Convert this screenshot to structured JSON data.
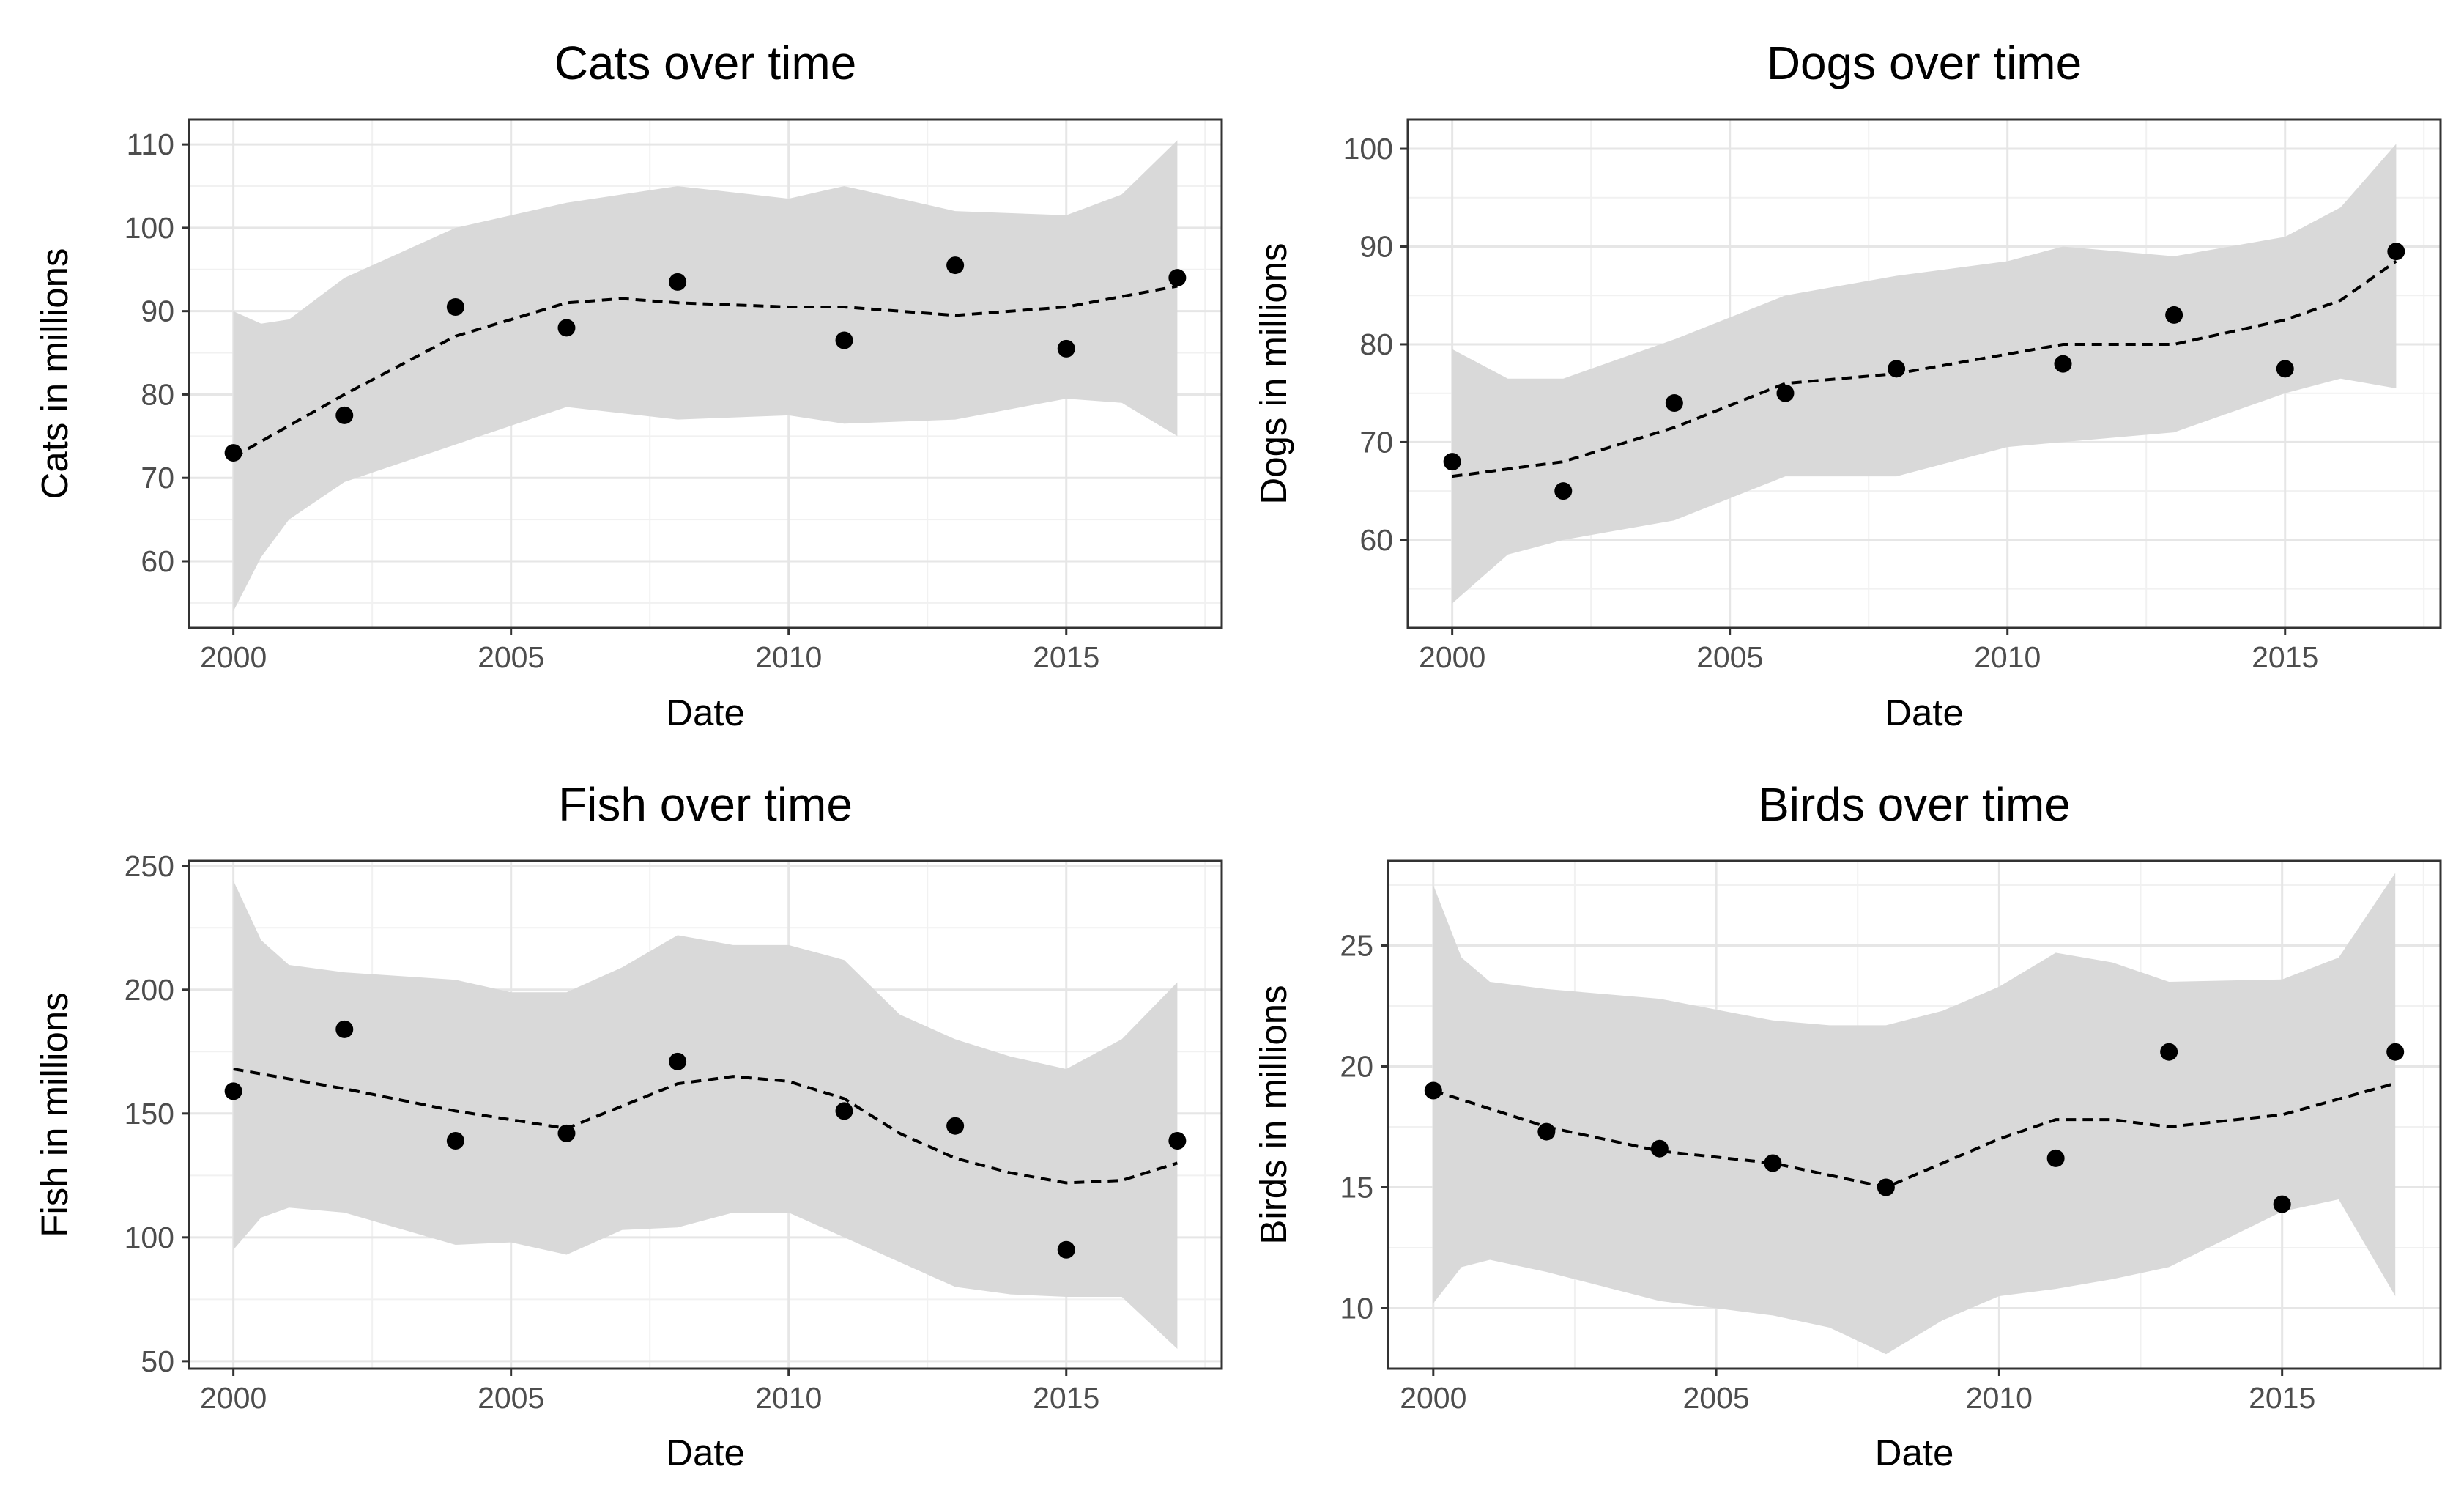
{
  "chart_data": [
    {
      "type": "scatter",
      "title": "Cats over time",
      "xlabel": "Date",
      "ylabel": "Cats in millions",
      "xlim": [
        1999.2,
        2017.8
      ],
      "ylim": [
        52,
        113
      ],
      "xticks": [
        2000,
        2005,
        2010,
        2015
      ],
      "yticks": [
        60,
        70,
        80,
        90,
        100,
        110
      ],
      "grid": true,
      "points": {
        "x": [
          2000,
          2002,
          2004,
          2006,
          2008,
          2011,
          2013,
          2015,
          2017
        ],
        "y": [
          73,
          77.5,
          90.5,
          88,
          93.5,
          86.5,
          95.5,
          85.5,
          94
        ]
      },
      "smooth": {
        "x": [
          2000,
          2002,
          2004,
          2006,
          2007,
          2008,
          2010,
          2011,
          2013,
          2015,
          2017
        ],
        "y": [
          72.5,
          80,
          87,
          91,
          91.5,
          91,
          90.5,
          90.5,
          89.5,
          90.5,
          93
        ]
      },
      "band": {
        "x": [
          2000,
          2000.5,
          2001,
          2002,
          2004,
          2006,
          2008,
          2010,
          2011,
          2013,
          2015,
          2016,
          2017
        ],
        "lower": [
          54,
          60.5,
          65,
          69.5,
          74,
          78.5,
          77,
          77.5,
          76.5,
          77,
          79.5,
          79,
          75
        ],
        "upper": [
          90,
          88.5,
          89,
          94,
          100,
          103,
          105,
          103.5,
          105,
          102,
          101.5,
          104,
          110.5
        ]
      }
    },
    {
      "type": "scatter",
      "title": "Dogs over time",
      "xlabel": "Date",
      "ylabel": "Dogs in millions",
      "xlim": [
        1999.2,
        2017.8
      ],
      "ylim": [
        51,
        103
      ],
      "xticks": [
        2000,
        2005,
        2010,
        2015
      ],
      "yticks": [
        60,
        70,
        80,
        90,
        100
      ],
      "grid": true,
      "points": {
        "x": [
          2000,
          2002,
          2004,
          2006,
          2008,
          2011,
          2013,
          2015,
          2017
        ],
        "y": [
          68,
          65,
          74,
          75,
          77.5,
          78,
          83,
          77.5,
          89.5
        ]
      },
      "smooth": {
        "x": [
          2000,
          2002,
          2004,
          2006,
          2008,
          2010,
          2011,
          2013,
          2015,
          2016,
          2017
        ],
        "y": [
          66.5,
          68,
          71.5,
          76,
          77,
          79,
          80,
          80,
          82.5,
          84.5,
          88.5
        ]
      },
      "band": {
        "x": [
          2000,
          2001,
          2002,
          2004,
          2006,
          2008,
          2010,
          2011,
          2013,
          2015,
          2016,
          2017
        ],
        "lower": [
          53.5,
          58.5,
          60,
          62,
          66.5,
          66.5,
          69.5,
          70,
          71,
          75,
          76.5,
          75.5
        ],
        "upper": [
          79.5,
          76.5,
          76.5,
          80.5,
          85,
          87,
          88.5,
          90,
          89,
          91,
          94,
          100.5
        ]
      }
    },
    {
      "type": "scatter",
      "title": "Fish over time",
      "xlabel": "Date",
      "ylabel": "Fish in millions",
      "xlim": [
        1999.2,
        2017.8
      ],
      "ylim": [
        47,
        252
      ],
      "xticks": [
        2000,
        2005,
        2010,
        2015
      ],
      "yticks": [
        50,
        100,
        150,
        200,
        250
      ],
      "grid": true,
      "points": {
        "x": [
          2000,
          2002,
          2004,
          2006,
          2008,
          2011,
          2013,
          2015,
          2017
        ],
        "y": [
          159,
          184,
          139,
          142,
          171,
          151,
          145,
          95,
          139
        ]
      },
      "smooth": {
        "x": [
          2000,
          2002,
          2004,
          2006,
          2007,
          2008,
          2009,
          2010,
          2011,
          2012,
          2013,
          2014,
          2015,
          2016,
          2017
        ],
        "y": [
          168,
          160,
          151,
          144,
          153,
          162,
          165,
          163,
          156,
          142,
          132,
          126,
          122,
          123,
          130
        ]
      },
      "band": {
        "x": [
          2000,
          2000.5,
          2001,
          2002,
          2004,
          2005,
          2006,
          2007,
          2008,
          2009,
          2010,
          2011,
          2012,
          2013,
          2014,
          2015,
          2016,
          2017
        ],
        "lower": [
          95,
          108,
          112,
          110,
          97,
          98,
          93,
          103,
          104,
          110,
          110,
          100,
          90,
          80,
          77,
          76,
          76,
          55
        ],
        "upper": [
          244,
          220,
          210,
          207,
          204,
          199,
          199,
          209,
          222,
          218,
          218,
          212,
          190,
          180,
          173,
          168,
          180,
          203
        ]
      }
    },
    {
      "type": "scatter",
      "title": "Birds over time",
      "xlabel": "Date",
      "ylabel": "Birds in millions",
      "xlim": [
        1999.2,
        2017.8
      ],
      "ylim": [
        7.5,
        28.5
      ],
      "xticks": [
        2000,
        2005,
        2010,
        2015
      ],
      "yticks": [
        10,
        15,
        20,
        25
      ],
      "grid": true,
      "points": {
        "x": [
          2000,
          2002,
          2004,
          2006,
          2008,
          2011,
          2013,
          2015,
          2017
        ],
        "y": [
          19,
          17.3,
          16.6,
          16,
          15,
          16.2,
          20.6,
          14.3,
          20.6
        ]
      },
      "smooth": {
        "x": [
          2000,
          2002,
          2004,
          2006,
          2008,
          2009,
          2010,
          2011,
          2012,
          2013,
          2015,
          2017
        ],
        "y": [
          19,
          17.5,
          16.5,
          16,
          15,
          16,
          17,
          17.8,
          17.8,
          17.5,
          18,
          19.3
        ]
      },
      "band": {
        "x": [
          2000,
          2000.5,
          2001,
          2002,
          2004,
          2006,
          2007,
          2008,
          2009,
          2010,
          2011,
          2012,
          2013,
          2015,
          2016,
          2017
        ],
        "lower": [
          10.2,
          11.7,
          12,
          11.5,
          10.3,
          9.7,
          9.2,
          8.1,
          9.5,
          10.5,
          10.8,
          11.2,
          11.7,
          14,
          14.5,
          10.5
        ],
        "upper": [
          27.5,
          24.5,
          23.5,
          23.2,
          22.8,
          21.9,
          21.7,
          21.7,
          22.3,
          23.3,
          24.7,
          24.3,
          23.5,
          23.6,
          24.5,
          28
        ]
      }
    }
  ]
}
